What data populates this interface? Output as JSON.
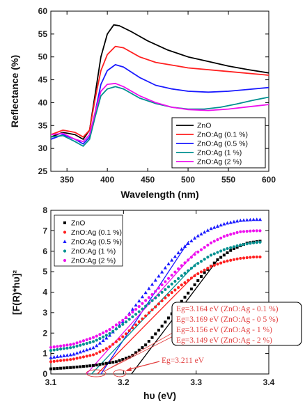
{
  "chart_data": [
    {
      "type": "line",
      "xlabel": "Wavelength (nm)",
      "ylabel": "Reflectance (%)",
      "xlim": [
        330,
        600
      ],
      "ylim": [
        25,
        60
      ],
      "xticks": [
        350,
        400,
        450,
        500,
        550,
        600
      ],
      "yticks": [
        25,
        30,
        35,
        40,
        45,
        50,
        55,
        60
      ],
      "legend_placement": "bottom-right",
      "series": [
        {
          "name": "ZnO",
          "color": "#000000",
          "points": [
            [
              330,
              32.5
            ],
            [
              345,
              33.5
            ],
            [
              360,
              33
            ],
            [
              370,
              32
            ],
            [
              378,
              34
            ],
            [
              385,
              42
            ],
            [
              392,
              50
            ],
            [
              400,
              55
            ],
            [
              408,
              57
            ],
            [
              415,
              56.8
            ],
            [
              430,
              55.5
            ],
            [
              450,
              53.5
            ],
            [
              475,
              51.5
            ],
            [
              500,
              50
            ],
            [
              525,
              49
            ],
            [
              550,
              48
            ],
            [
              575,
              47.2
            ],
            [
              600,
              46.5
            ]
          ]
        },
        {
          "name": "ZnO:Ag (0.1 %)",
          "color": "#ff2020",
          "points": [
            [
              330,
              33
            ],
            [
              345,
              34
            ],
            [
              360,
              33.5
            ],
            [
              370,
              32.5
            ],
            [
              378,
              34
            ],
            [
              385,
              41
            ],
            [
              392,
              47
            ],
            [
              400,
              50.5
            ],
            [
              410,
              52.3
            ],
            [
              420,
              52
            ],
            [
              440,
              50
            ],
            [
              460,
              48.8
            ],
            [
              480,
              48.2
            ],
            [
              500,
              47.6
            ],
            [
              550,
              46.8
            ],
            [
              600,
              46
            ]
          ]
        },
        {
          "name": "ZnO:Ag (0.5 %)",
          "color": "#1a1aff",
          "points": [
            [
              330,
              32
            ],
            [
              345,
              33
            ],
            [
              360,
              32
            ],
            [
              370,
              31
            ],
            [
              378,
              32.5
            ],
            [
              385,
              38
            ],
            [
              392,
              44
            ],
            [
              400,
              47
            ],
            [
              410,
              48.3
            ],
            [
              420,
              47.8
            ],
            [
              440,
              45.5
            ],
            [
              460,
              43.8
            ],
            [
              480,
              43
            ],
            [
              500,
              42.5
            ],
            [
              525,
              42.3
            ],
            [
              550,
              42.5
            ],
            [
              575,
              42.9
            ],
            [
              600,
              43.3
            ]
          ]
        },
        {
          "name": "ZnO:Ag (1 %)",
          "color": "#009090",
          "points": [
            [
              330,
              32.5
            ],
            [
              345,
              32.8
            ],
            [
              360,
              31.5
            ],
            [
              370,
              30.5
            ],
            [
              378,
              32
            ],
            [
              385,
              37
            ],
            [
              392,
              41.5
            ],
            [
              400,
              43
            ],
            [
              410,
              43.5
            ],
            [
              420,
              43
            ],
            [
              440,
              41
            ],
            [
              460,
              39.8
            ],
            [
              480,
              39
            ],
            [
              500,
              38.6
            ],
            [
              520,
              38.6
            ],
            [
              540,
              39
            ],
            [
              560,
              39.7
            ],
            [
              580,
              40.5
            ],
            [
              600,
              41.2
            ]
          ]
        },
        {
          "name": "ZnO:Ag (2 %)",
          "color": "#ee10ee",
          "points": [
            [
              330,
              33
            ],
            [
              345,
              33.3
            ],
            [
              360,
              32
            ],
            [
              370,
              31.5
            ],
            [
              378,
              33
            ],
            [
              385,
              38
            ],
            [
              392,
              42.5
            ],
            [
              400,
              44
            ],
            [
              410,
              44.2
            ],
            [
              420,
              43.5
            ],
            [
              440,
              41.5
            ],
            [
              460,
              40
            ],
            [
              480,
              39
            ],
            [
              500,
              38.5
            ],
            [
              525,
              38.3
            ],
            [
              550,
              38.6
            ],
            [
              575,
              39.1
            ],
            [
              600,
              39.6
            ]
          ]
        }
      ]
    },
    {
      "type": "scatter",
      "xlabel": "hυ (eV)",
      "ylabel": "[F(R)*hυ]²",
      "xlim": [
        3.1,
        3.4
      ],
      "ylim": [
        0,
        8
      ],
      "xticks": [
        3.1,
        3.2,
        3.3,
        3.4
      ],
      "yticks": [
        0,
        1,
        2,
        3,
        4,
        5,
        6,
        7,
        8
      ],
      "legend_placement": "top-left",
      "series": [
        {
          "name": "ZnO",
          "color": "#000000",
          "marker": "square",
          "points": [
            [
              3.1,
              0.25
            ],
            [
              3.13,
              0.32
            ],
            [
              3.16,
              0.42
            ],
            [
              3.19,
              0.6
            ],
            [
              3.21,
              0.85
            ],
            [
              3.23,
              1.4
            ],
            [
              3.25,
              2.2
            ],
            [
              3.27,
              3.1
            ],
            [
              3.29,
              4.0
            ],
            [
              3.31,
              4.9
            ],
            [
              3.33,
              5.6
            ],
            [
              3.35,
              6.1
            ],
            [
              3.37,
              6.4
            ],
            [
              3.39,
              6.5
            ]
          ]
        },
        {
          "name": "ZnO:Ag (0.1 %)",
          "color": "#ff2020",
          "marker": "circle",
          "points": [
            [
              3.1,
              0.6
            ],
            [
              3.13,
              0.72
            ],
            [
              3.16,
              0.95
            ],
            [
              3.18,
              1.3
            ],
            [
              3.2,
              1.85
            ],
            [
              3.22,
              2.5
            ],
            [
              3.24,
              3.15
            ],
            [
              3.26,
              3.8
            ],
            [
              3.28,
              4.35
            ],
            [
              3.3,
              4.85
            ],
            [
              3.32,
              5.25
            ],
            [
              3.34,
              5.5
            ],
            [
              3.36,
              5.65
            ],
            [
              3.38,
              5.72
            ],
            [
              3.39,
              5.72
            ]
          ]
        },
        {
          "name": "ZnO:Ag (0.5 %)",
          "color": "#1a1aff",
          "marker": "triangle",
          "points": [
            [
              3.1,
              0.8
            ],
            [
              3.13,
              0.95
            ],
            [
              3.16,
              1.3
            ],
            [
              3.18,
              1.85
            ],
            [
              3.2,
              2.6
            ],
            [
              3.22,
              3.5
            ],
            [
              3.24,
              4.4
            ],
            [
              3.26,
              5.3
            ],
            [
              3.28,
              6.1
            ],
            [
              3.3,
              6.7
            ],
            [
              3.32,
              7.1
            ],
            [
              3.34,
              7.35
            ],
            [
              3.36,
              7.5
            ],
            [
              3.38,
              7.55
            ],
            [
              3.39,
              7.55
            ]
          ]
        },
        {
          "name": "ZnO:Ag (1 %)",
          "color": "#009090",
          "marker": "circle",
          "points": [
            [
              3.1,
              1.15
            ],
            [
              3.13,
              1.3
            ],
            [
              3.16,
              1.6
            ],
            [
              3.18,
              1.95
            ],
            [
              3.2,
              2.45
            ],
            [
              3.22,
              3.0
            ],
            [
              3.24,
              3.6
            ],
            [
              3.26,
              4.2
            ],
            [
              3.28,
              4.8
            ],
            [
              3.3,
              5.35
            ],
            [
              3.32,
              5.8
            ],
            [
              3.34,
              6.1
            ],
            [
              3.36,
              6.3
            ],
            [
              3.38,
              6.42
            ],
            [
              3.39,
              6.45
            ]
          ]
        },
        {
          "name": "ZnO:Ag (2 %)",
          "color": "#ee10ee",
          "marker": "circle",
          "points": [
            [
              3.1,
              1.3
            ],
            [
              3.13,
              1.45
            ],
            [
              3.16,
              1.8
            ],
            [
              3.18,
              2.15
            ],
            [
              3.2,
              2.65
            ],
            [
              3.22,
              3.25
            ],
            [
              3.24,
              3.9
            ],
            [
              3.26,
              4.6
            ],
            [
              3.28,
              5.3
            ],
            [
              3.3,
              5.9
            ],
            [
              3.32,
              6.4
            ],
            [
              3.34,
              6.75
            ],
            [
              3.36,
              6.95
            ],
            [
              3.38,
              7.0
            ],
            [
              3.39,
              7.0
            ]
          ]
        }
      ],
      "fit_lines": [
        {
          "color": "#000000",
          "from": [
            3.211,
            0
          ],
          "to": [
            3.33,
            5.6
          ]
        },
        {
          "color": "#ff2020",
          "from": [
            3.164,
            0
          ],
          "to": [
            3.3,
            4.9
          ]
        },
        {
          "color": "#1a1aff",
          "from": [
            3.169,
            0
          ],
          "to": [
            3.29,
            6.5
          ]
        },
        {
          "color": "#009090",
          "from": [
            3.156,
            0
          ],
          "to": [
            3.3,
            5.4
          ]
        },
        {
          "color": "#ee10ee",
          "from": [
            3.149,
            0
          ],
          "to": [
            3.3,
            6.0
          ]
        }
      ],
      "annotations": {
        "gap_lines": [
          "Eg=3.164 eV (ZnO:Ag - 0.1 %)",
          "Eg=3.169 eV (ZnO:Ag - 0 5 %)",
          "Eg=3.156 eV (ZnO:Ag - 1 %)",
          "Eg=3.149 eV (ZnO:Ag - 2 %)"
        ],
        "zno_gap": "Eg=3.211 eV"
      }
    }
  ]
}
